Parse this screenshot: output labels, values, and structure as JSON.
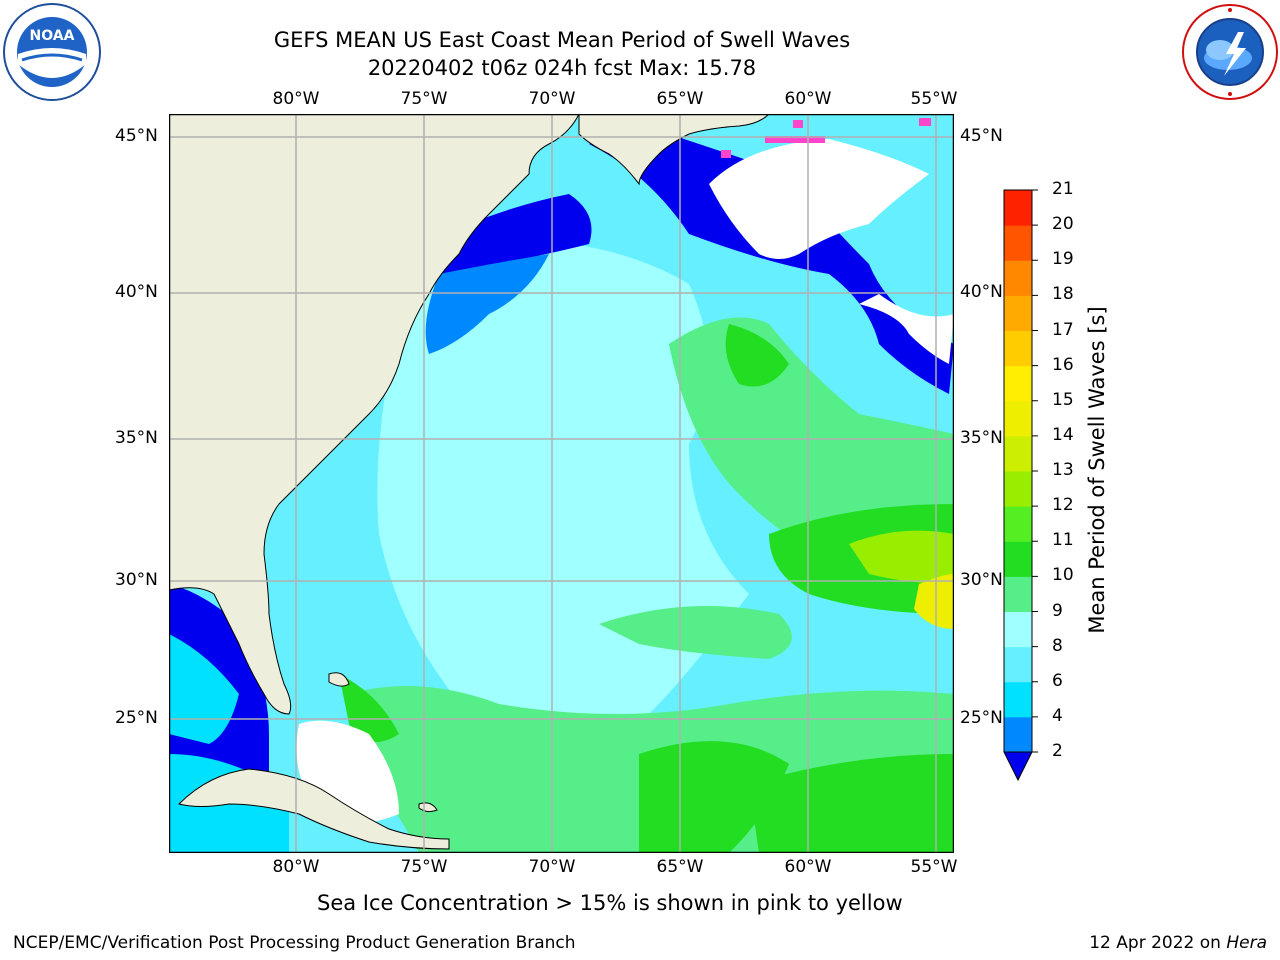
{
  "header": {
    "title_line1": "GEFS MEAN US East Coast Mean Period of Swell Waves",
    "title_line2": "20220402 t06z 024h fcst   Max: 15.78"
  },
  "logos": {
    "noaa": {
      "text": "NOAA",
      "ring_text": "NATIONAL OCEANIC AND ATMOSPHERIC ADMINISTRATION · U.S. DEPARTMENT OF COMMERCE",
      "icon": "noaa-logo"
    },
    "nws": {
      "ring_text": "NATIONAL WEATHER SERVICE",
      "icon": "nws-logo"
    }
  },
  "map": {
    "lon_ticks": [
      "80°W",
      "75°W",
      "70°W",
      "65°W",
      "60°W",
      "55°W"
    ],
    "lat_ticks": [
      "45°N",
      "40°N",
      "35°N",
      "30°N",
      "25°N"
    ],
    "grid": true,
    "colors": {
      "land": "#eeeedc",
      "no_data": "#ffffff",
      "grid": "#b0b0b0"
    }
  },
  "colorbar": {
    "title": "Mean Period of Swell Waves [s]",
    "ticks": [
      "2",
      "4",
      "6",
      "8",
      "9",
      "10",
      "11",
      "12",
      "13",
      "14",
      "15",
      "16",
      "17",
      "18",
      "19",
      "20",
      "21"
    ],
    "colors": [
      "#0000ee",
      "#0088ff",
      "#00e0ff",
      "#66f0ff",
      "#a0ffff",
      "#55ee88",
      "#22dd22",
      "#55ee22",
      "#99ee00",
      "#ccee00",
      "#eeee00",
      "#ffee00",
      "#ffcc00",
      "#ffaa00",
      "#ff8800",
      "#ff5500",
      "#ff2200",
      "#ff0000"
    ],
    "extend": "min"
  },
  "sea_ice_note": "Sea Ice Concentration > 15% is shown in pink to yellow",
  "footer": {
    "left": "NCEP/EMC/Verification Post Processing Product Generation Branch",
    "right_date": "12 Apr 2022 on ",
    "right_host": "Hera"
  }
}
